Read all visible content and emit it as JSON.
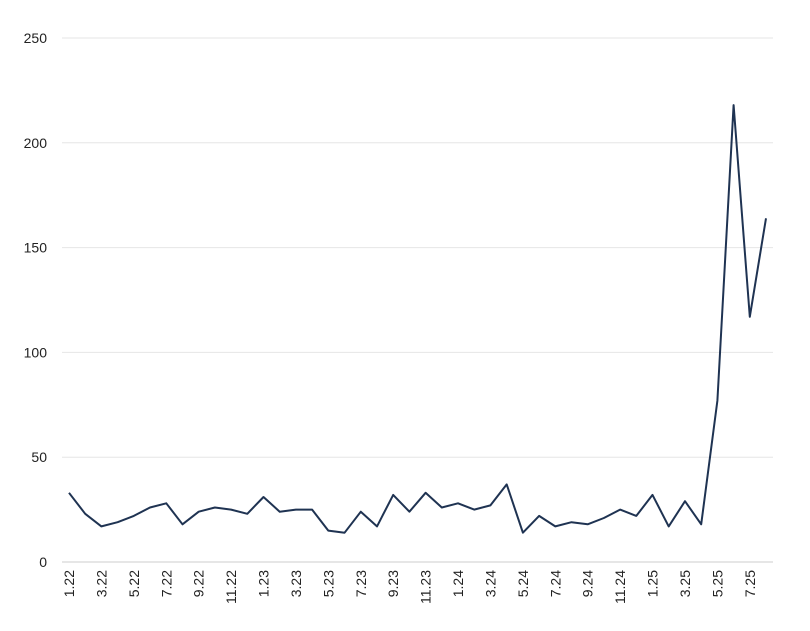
{
  "chart_data": {
    "type": "line",
    "title": "",
    "xlabel": "",
    "ylabel": "",
    "ylim": [
      0,
      250
    ],
    "yticks": [
      0,
      50,
      100,
      150,
      200,
      250
    ],
    "grid": true,
    "legend": "none",
    "line_color": "#1f3352",
    "x": [
      "1.22",
      "2.22",
      "3.22",
      "4.22",
      "5.22",
      "6.22",
      "7.22",
      "8.22",
      "9.22",
      "10.22",
      "11.22",
      "12.22",
      "1.23",
      "2.23",
      "3.23",
      "4.23",
      "5.23",
      "6.23",
      "7.23",
      "8.23",
      "9.23",
      "10.23",
      "11.23",
      "12.23",
      "1.24",
      "2.24",
      "3.24",
      "4.24",
      "5.24",
      "6.24",
      "7.24",
      "8.24",
      "9.24",
      "10.24",
      "11.24",
      "12.24",
      "1.25",
      "2.25",
      "3.25",
      "4.25",
      "5.25",
      "6.25",
      "7.25",
      "8.25"
    ],
    "x_tick_labels": [
      "1.22",
      "3.22",
      "5.22",
      "7.22",
      "9.22",
      "11.22",
      "1.23",
      "3.23",
      "5.23",
      "7.23",
      "9.23",
      "11.23",
      "1.24",
      "3.24",
      "5.24",
      "7.24",
      "9.24",
      "11.24",
      "1.25",
      "3.25",
      "5.25",
      "7.25"
    ],
    "series": [
      {
        "values": [
          33,
          23,
          17,
          19,
          22,
          26,
          28,
          18,
          24,
          26,
          25,
          23,
          31,
          24,
          25,
          25,
          15,
          14,
          24,
          17,
          32,
          24,
          33,
          26,
          28,
          25,
          27,
          37,
          14,
          22,
          17,
          19,
          18,
          21,
          25,
          22,
          32,
          17,
          29,
          18,
          77,
          218,
          117,
          164
        ]
      }
    ]
  }
}
